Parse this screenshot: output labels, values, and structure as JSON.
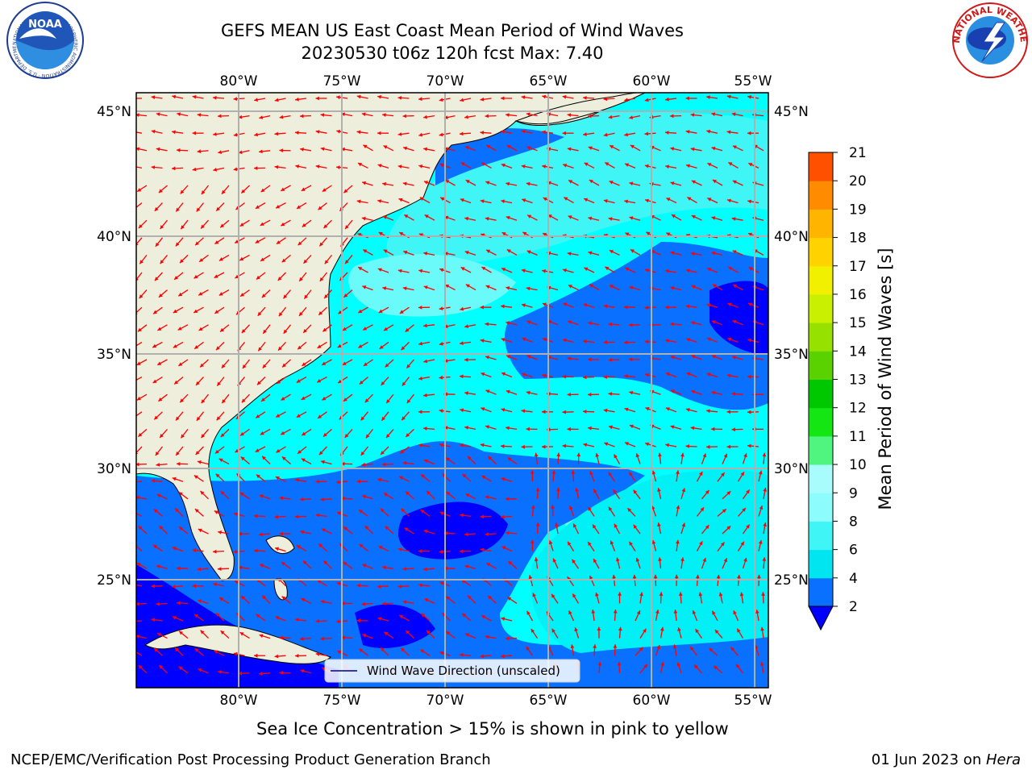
{
  "title": {
    "line1": "GEFS MEAN US East Coast Mean Period of Wind Waves",
    "line2": "20230530 t06z 120h fcst   Max: 7.40"
  },
  "map": {
    "lon_ticks": [
      "80°W",
      "75°W",
      "70°W",
      "65°W",
      "60°W",
      "55°W"
    ],
    "lat_ticks": [
      "45°N",
      "40°N",
      "35°N",
      "30°N",
      "25°N"
    ],
    "legend_label": "Wind Wave Direction (unscaled)",
    "arrow_color": "#ff0000"
  },
  "colorbar": {
    "label": "Mean Period of Wind Waves [s]",
    "ticks": [
      "2",
      "4",
      "6",
      "8",
      "9",
      "10",
      "11",
      "12",
      "13",
      "14",
      "15",
      "16",
      "17",
      "18",
      "19",
      "20",
      "21"
    ],
    "colors": [
      "#0a70ff",
      "#00e5f0",
      "#40f5f5",
      "#8cfcfc",
      "#a8fcfc",
      "#50f580",
      "#14e614",
      "#00c800",
      "#5ad200",
      "#96e100",
      "#c8f000",
      "#f0f000",
      "#ffd200",
      "#ffb400",
      "#ff8c00",
      "#ff5000",
      "#ff2800",
      "#ff0000"
    ],
    "under_color": "#0000ff"
  },
  "caption": "Sea Ice Concentration > 15% is shown in pink to yellow",
  "footer": {
    "left": "NCEP/EMC/Verification Post Processing Product Generation Branch",
    "date": "01 Jun 2023 on ",
    "machine": "Hera"
  },
  "logos": {
    "noaa": "NOAA",
    "noaa_ring": "NATIONAL OCEANIC AND ATMOSPHERIC ADMINISTRATION · U.S. DEPARTMENT OF COMMERCE",
    "nws_ring": "NATIONAL WEATHER SERVICE"
  }
}
